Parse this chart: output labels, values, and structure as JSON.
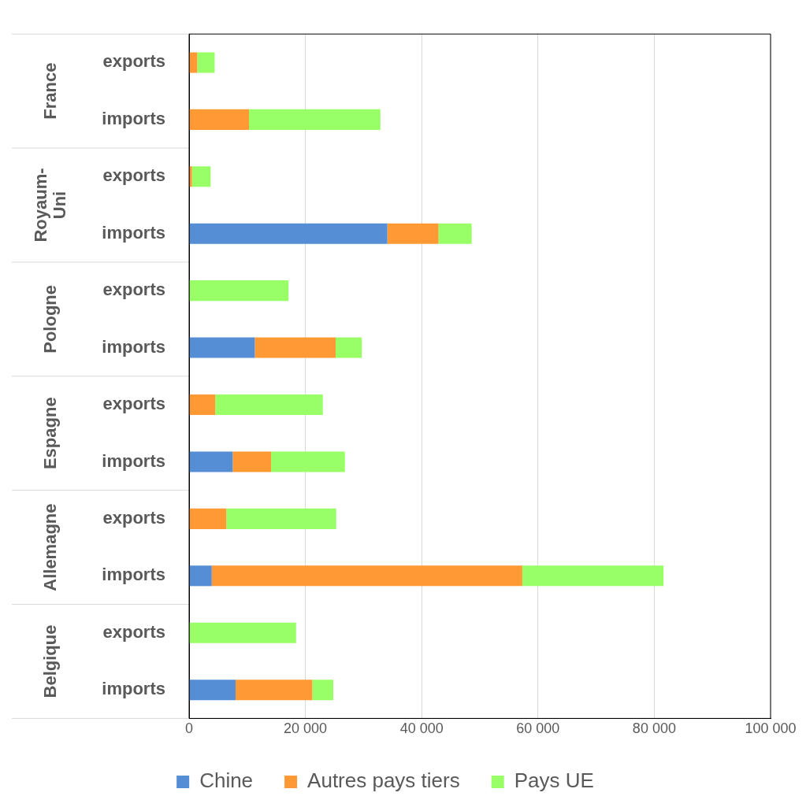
{
  "chart_data": {
    "type": "bar",
    "orientation": "horizontal",
    "stacked": true,
    "categories": [
      "exports",
      "imports",
      "exports",
      "imports",
      "exports",
      "imports",
      "exports",
      "imports",
      "exports",
      "imports",
      "exports",
      "imports"
    ],
    "annotations": [
      "France",
      "Royaum-Uni",
      "Pologne",
      "Espagne",
      "Allemagne",
      "Belgique"
    ],
    "series": [
      {
        "name": "Chine",
        "color": "#558ed5",
        "values": [
          0,
          0,
          0,
          34100,
          0,
          11300,
          0,
          7500,
          0,
          3900,
          0,
          8000
        ]
      },
      {
        "name": "Autres pays tiers",
        "color": "#ff9933",
        "values": [
          1400,
          10300,
          500,
          8800,
          0,
          13900,
          4500,
          6600,
          6400,
          53400,
          0,
          13200
        ]
      },
      {
        "name": "Pays UE",
        "color": "#99ff66",
        "values": [
          3000,
          22600,
          3200,
          5700,
          17100,
          4500,
          18500,
          12700,
          18900,
          24300,
          18400,
          3600
        ]
      }
    ],
    "xlim": [
      0,
      100000
    ],
    "xticks": [
      {
        "value": 0,
        "label": "0"
      },
      {
        "value": 20000,
        "label": "20 000"
      },
      {
        "value": 40000,
        "label": "40 000"
      },
      {
        "value": 60000,
        "label": "60 000"
      },
      {
        "value": 80000,
        "label": "80 000"
      },
      {
        "value": 100000,
        "label": "100 000"
      }
    ],
    "grid": "x",
    "legend": "bottom"
  }
}
